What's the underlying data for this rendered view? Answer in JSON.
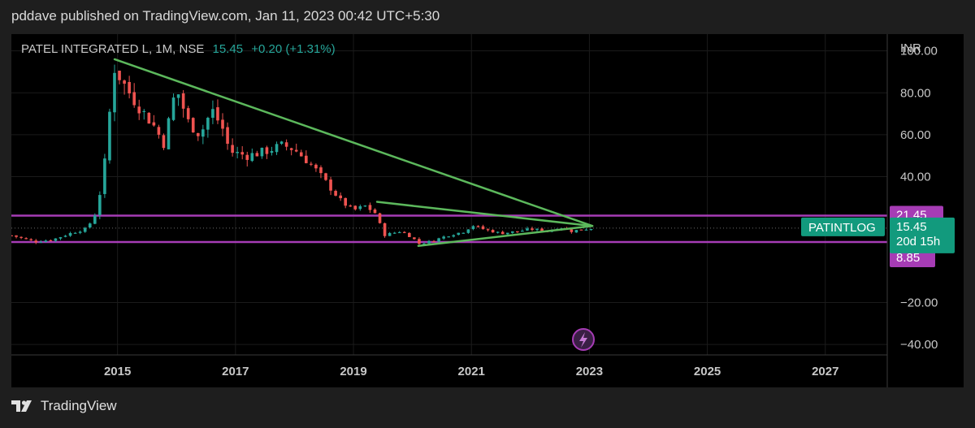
{
  "header": {
    "publisher_line": "pddave published on TradingView.com, Jan 11, 2023 00:42 UTC+5:30"
  },
  "legend": {
    "symbol_line": "PATEL INTEGRATED L, 1M, NSE",
    "last": "15.45",
    "change": "+0.20 (+1.31%)"
  },
  "currency": "INR",
  "footer": {
    "brand": "TradingView"
  },
  "colors": {
    "up": "#26a69a",
    "down": "#ef5350",
    "trend": "#5cb85c",
    "level": "#a63cb5",
    "badge_price": "#129a7d",
    "label_text": "#c8c8c8"
  },
  "icons": {
    "flash_marker": "lightning-icon",
    "logo": "tradingview-logo-icon"
  },
  "chart_data": {
    "type": "candlestick",
    "interval": "1M",
    "y_ticks": [
      "100.00",
      "80.00",
      "60.00",
      "40.00",
      "−20.00",
      "−40.00"
    ],
    "y_tick_values": [
      100,
      80,
      60,
      40,
      -20,
      -40
    ],
    "x_ticks": [
      "2015",
      "2017",
      "2019",
      "2021",
      "2023",
      "2025",
      "2027"
    ],
    "x_tick_values": [
      2015,
      2017,
      2019,
      2021,
      2023,
      2025,
      2027
    ],
    "ylim": [
      -45,
      108
    ],
    "xlim": [
      2013.2,
      2028.05
    ],
    "levels": [
      {
        "label": "21.45",
        "value": 21.45
      },
      {
        "label": "8.85",
        "value": 8.85
      }
    ],
    "price_badge": {
      "symbol": "PATINTLOG",
      "price": "15.45",
      "countdown": "20d 15h",
      "value": 15.45
    },
    "trendlines": [
      {
        "from": [
          2014.95,
          96
        ],
        "to": [
          2023.05,
          16.5
        ]
      },
      {
        "from": [
          2019.4,
          28
        ],
        "to": [
          2023.05,
          16.5
        ]
      },
      {
        "from": [
          2020.1,
          7
        ],
        "to": [
          2023.05,
          16.5
        ]
      }
    ],
    "anchors": [
      [
        2013.2,
        12
      ],
      [
        2013.6,
        9
      ],
      [
        2013.9,
        10
      ],
      [
        2014.2,
        13
      ],
      [
        2014.45,
        15
      ],
      [
        2014.6,
        20
      ],
      [
        2014.7,
        32
      ],
      [
        2014.8,
        50
      ],
      [
        2014.88,
        75
      ],
      [
        2014.95,
        92
      ],
      [
        2015.15,
        82
      ],
      [
        2015.4,
        72
      ],
      [
        2015.6,
        65
      ],
      [
        2015.8,
        55
      ],
      [
        2015.9,
        72
      ],
      [
        2016.0,
        82
      ],
      [
        2016.2,
        66
      ],
      [
        2016.4,
        60
      ],
      [
        2016.6,
        72
      ],
      [
        2016.8,
        62
      ],
      [
        2016.9,
        52
      ],
      [
        2017.2,
        50
      ],
      [
        2017.5,
        52
      ],
      [
        2017.8,
        55
      ],
      [
        2018.0,
        53
      ],
      [
        2018.2,
        48
      ],
      [
        2018.4,
        42
      ],
      [
        2018.6,
        35
      ],
      [
        2018.8,
        28
      ],
      [
        2019.0,
        24
      ],
      [
        2019.2,
        26
      ],
      [
        2019.4,
        22
      ],
      [
        2019.5,
        12
      ],
      [
        2019.8,
        14
      ],
      [
        2020.0,
        11
      ],
      [
        2020.1,
        8
      ],
      [
        2020.3,
        9
      ],
      [
        2020.6,
        12
      ],
      [
        2020.9,
        14
      ],
      [
        2021.0,
        17
      ],
      [
        2021.2,
        15
      ],
      [
        2021.5,
        13
      ],
      [
        2021.8,
        14
      ],
      [
        2022.0,
        15
      ],
      [
        2022.3,
        14
      ],
      [
        2022.5,
        16
      ],
      [
        2022.7,
        14
      ],
      [
        2022.9,
        15
      ],
      [
        2023.05,
        15.45
      ]
    ],
    "bar_dx": 0.0833
  }
}
